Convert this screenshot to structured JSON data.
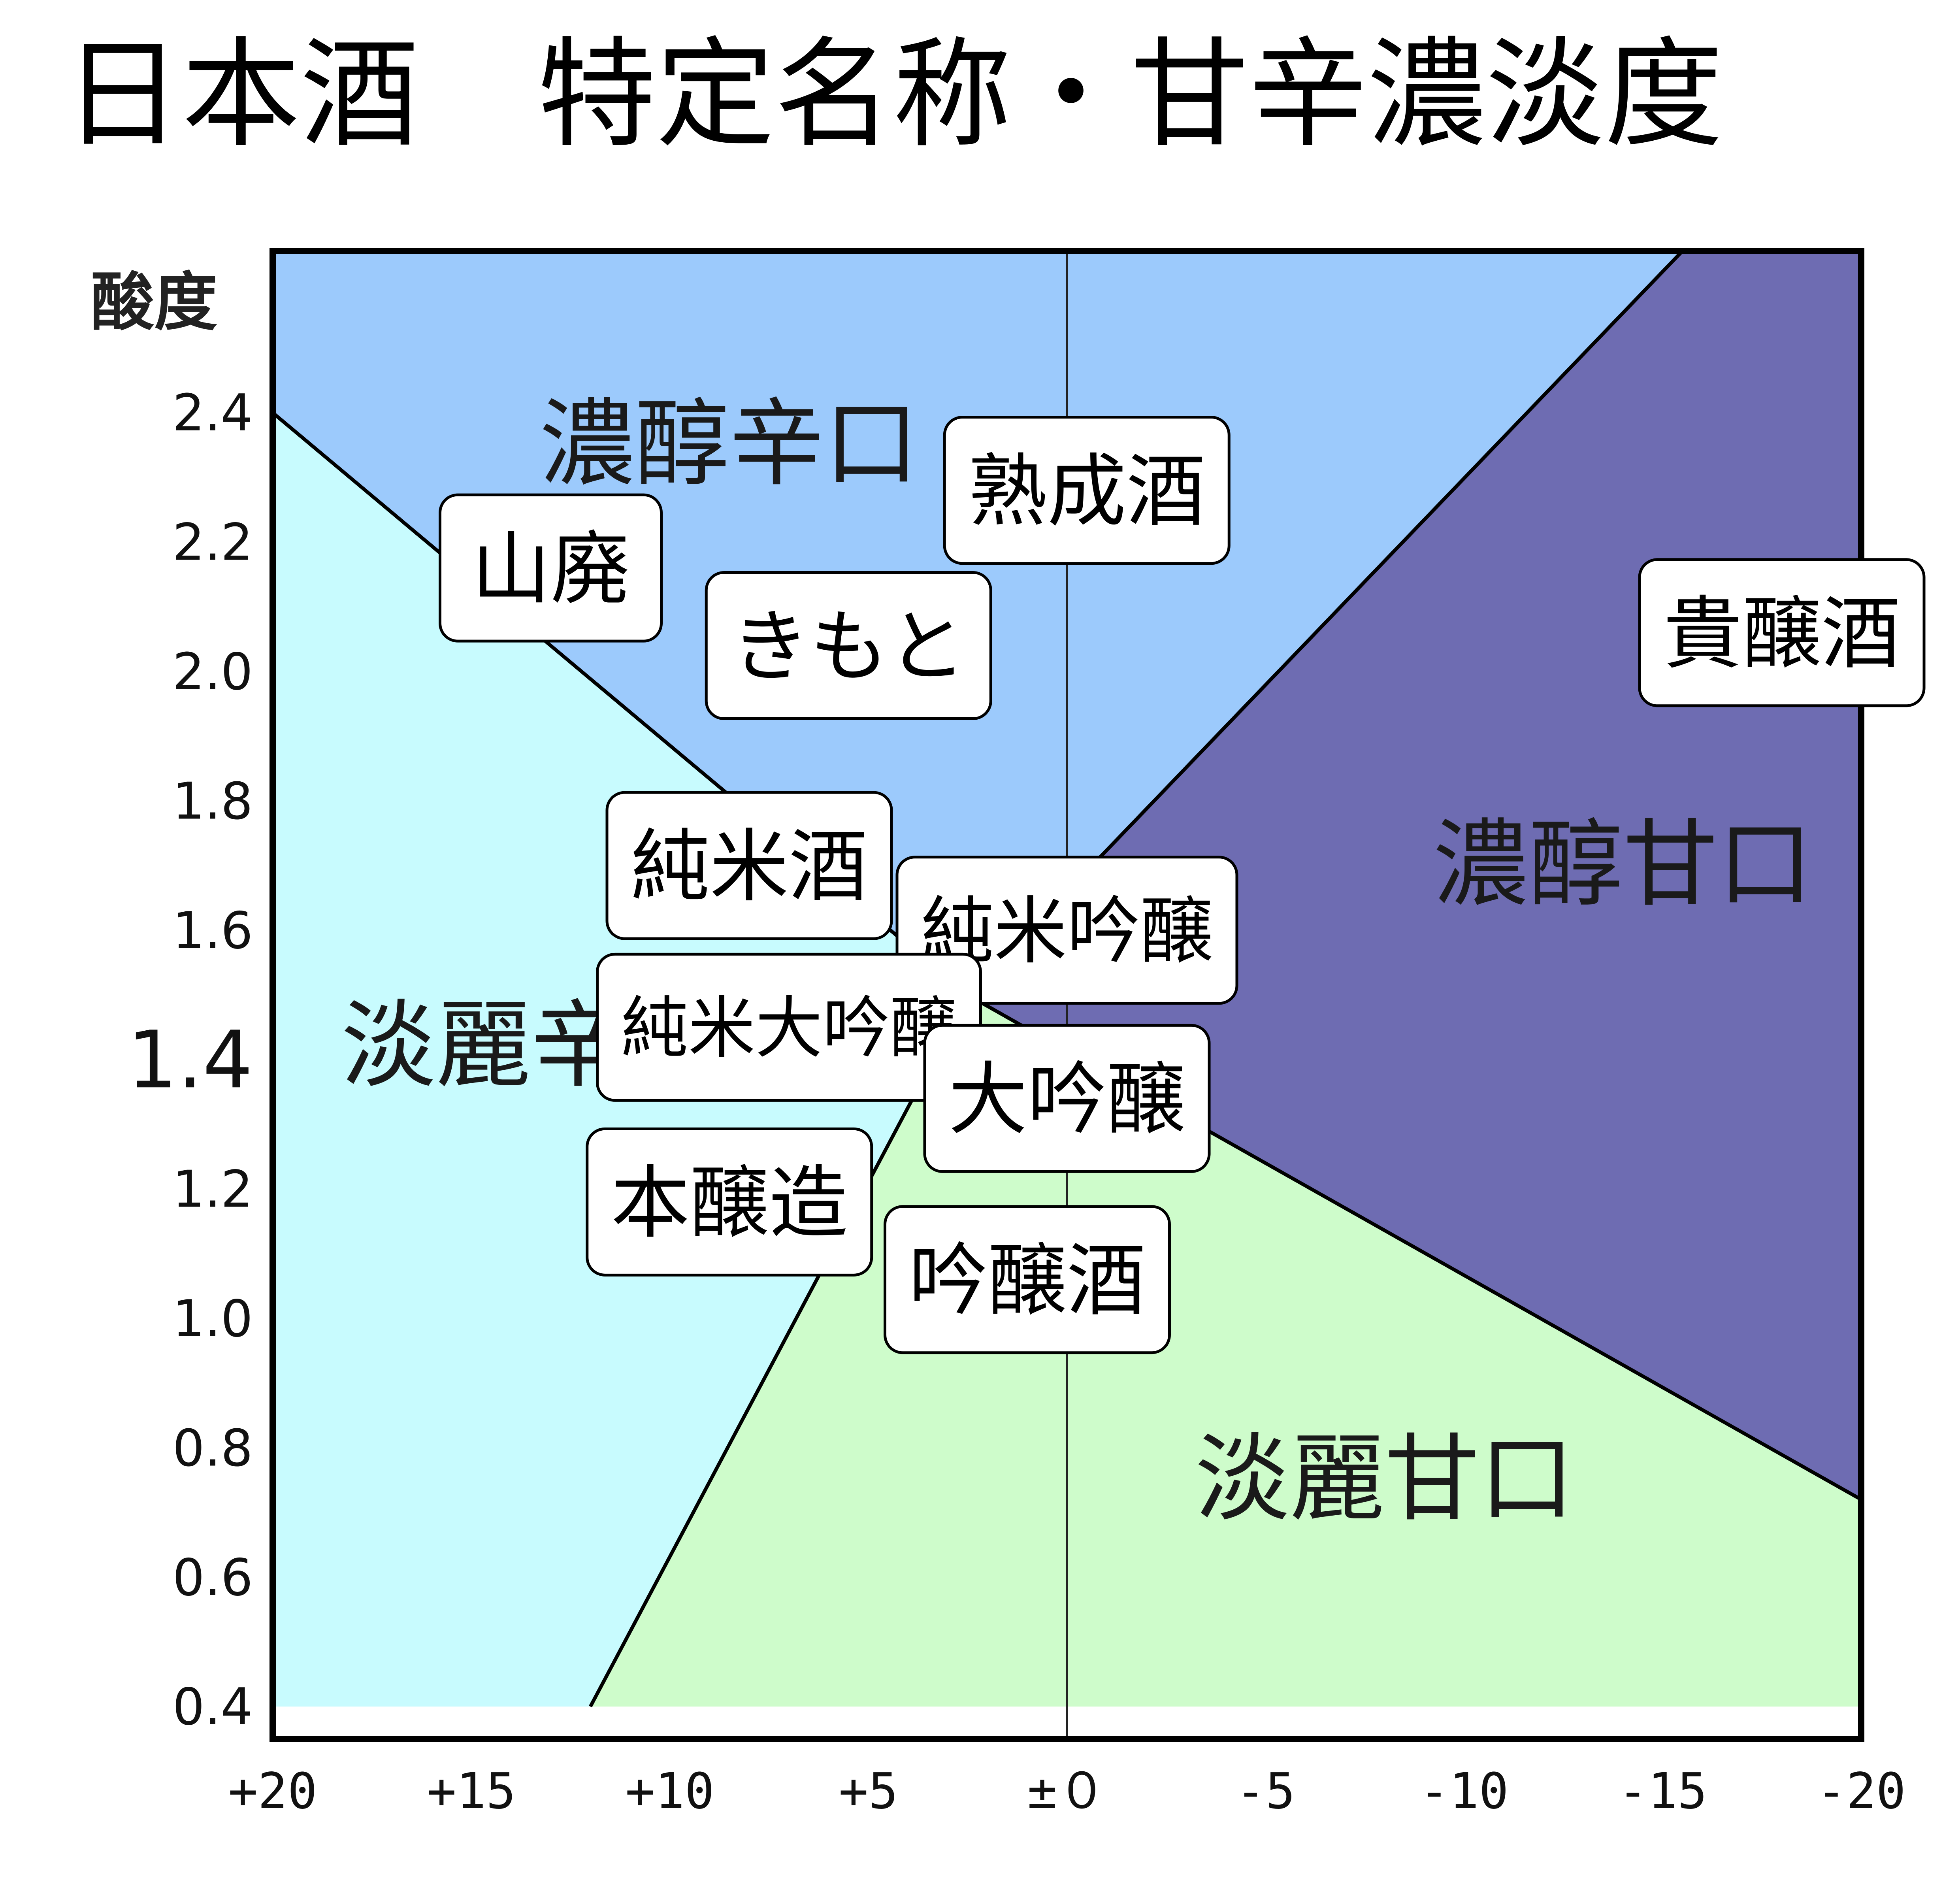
{
  "title": "日本酒　特定名称・甘辛濃淡度",
  "colors": {
    "kanreikarakuchi_light": "#C8FBFE",
    "noujunkarakuchi_blue": "#9CCAFC",
    "noujunamakuchi_purple": "#6E6CB2",
    "tanreiamakuchi_green": "#CEFCCB",
    "outline": "#000000"
  },
  "chart_data": {
    "type": "scatter",
    "title": "日本酒　特定名称・甘辛濃淡度",
    "xlabel": "",
    "ylabel": "酸度",
    "xlim": [
      20,
      -20
    ],
    "ylim": [
      0.35,
      2.65
    ],
    "x_reversed": true,
    "x_ticks": [
      20,
      15,
      10,
      5,
      0,
      -5,
      -10,
      -15,
      -20
    ],
    "x_tick_labels": [
      "+20",
      "+15",
      "+10",
      "+5",
      "±０",
      "-5",
      "-10",
      "-15",
      "-20"
    ],
    "y_ticks": [
      2.4,
      2.2,
      2.0,
      1.8,
      1.6,
      1.4,
      1.2,
      1.0,
      0.8,
      0.6,
      0.4
    ],
    "y_tick_labels": [
      "2.4",
      "2.2",
      "2.0",
      "1.8",
      "1.6",
      "1.4",
      "1.2",
      "1.0",
      "0.8",
      "0.6",
      "0.4"
    ],
    "y_tick_emphasis": "1.4",
    "grid": false,
    "center_line_x": 0,
    "regions": [
      {
        "name": "淡麗辛口",
        "color": "#C8FBFE",
        "polygon": [
          [
            20,
            0.4
          ],
          [
            20,
            2.4
          ],
          [
            2.5,
            1.5
          ],
          [
            12,
            0.4
          ]
        ]
      },
      {
        "name": "濃醇辛口",
        "color": "#9CCAFC",
        "polygon": [
          [
            20,
            2.4
          ],
          [
            20,
            2.65
          ],
          [
            -15.5,
            2.65
          ],
          [
            2.5,
            1.5
          ]
        ]
      },
      {
        "name": "濃醇甘口",
        "color": "#6E6CB2",
        "polygon": [
          [
            -15.5,
            2.65
          ],
          [
            -20,
            2.65
          ],
          [
            -20,
            0.72
          ],
          [
            2.5,
            1.5
          ]
        ]
      },
      {
        "name": "淡麗甘口",
        "color": "#CEFCCB",
        "polygon": [
          [
            12,
            0.4
          ],
          [
            -20,
            0.4
          ],
          [
            -20,
            0.72
          ],
          [
            2.5,
            1.5
          ]
        ]
      }
    ],
    "region_labels": [
      {
        "text": "濃醇辛口",
        "x": 8.5,
        "y": 2.35
      },
      {
        "text": "淡麗辛口",
        "x": 13.5,
        "y": 1.42
      },
      {
        "text": "濃醇甘口",
        "x": -14,
        "y": 1.7
      },
      {
        "text": "淡麗甘口",
        "x": -8,
        "y": 0.75
      }
    ],
    "points": [
      {
        "label": "熟成酒",
        "x": -0.5,
        "y": 2.28
      },
      {
        "label": "山廃",
        "x": 13,
        "y": 2.16
      },
      {
        "label": "きもと",
        "x": 5.5,
        "y": 2.04
      },
      {
        "label": "貴醸酒",
        "x": -18,
        "y": 2.06
      },
      {
        "label": "純米酒",
        "x": 8,
        "y": 1.7
      },
      {
        "label": "純米吟醸",
        "x": 0,
        "y": 1.6
      },
      {
        "label": "純米大吟醸",
        "x": 7,
        "y": 1.45
      },
      {
        "label": "大吟醸",
        "x": 0,
        "y": 1.34
      },
      {
        "label": "本醸造",
        "x": 8.5,
        "y": 1.18
      },
      {
        "label": "吟醸酒",
        "x": 1,
        "y": 1.06
      }
    ]
  }
}
